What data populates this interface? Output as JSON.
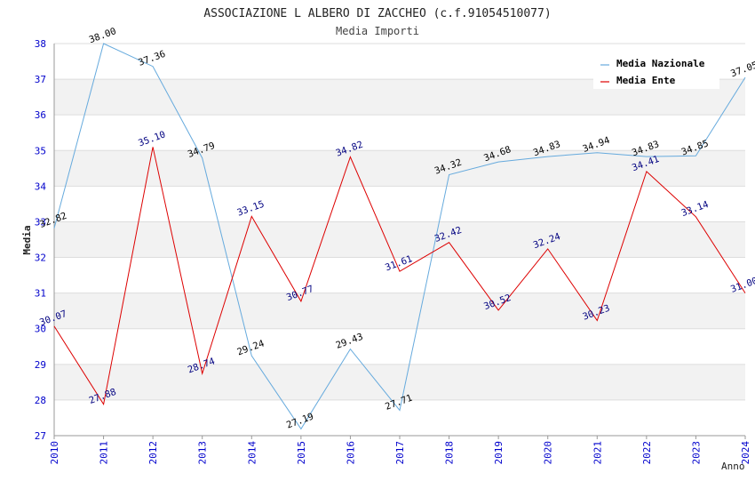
{
  "chart_data": {
    "type": "line",
    "title": "ASSOCIAZIONE L ALBERO DI ZACCHEO (c.f.91054510077)",
    "subtitle": "Media Importi",
    "xlabel": "Anno",
    "ylabel": "Media",
    "ylim": [
      27,
      38
    ],
    "yticks": [
      "27",
      "28",
      "29",
      "30",
      "31",
      "32",
      "33",
      "34",
      "35",
      "36",
      "37",
      "38"
    ],
    "categories": [
      "2010",
      "2011",
      "2012",
      "2013",
      "2014",
      "2015",
      "2016",
      "2017",
      "2018",
      "2019",
      "2020",
      "2021",
      "2022",
      "2023",
      "2024"
    ],
    "legend_position": "top-right",
    "series": [
      {
        "name": "Media Nazionale",
        "color": "#66aadd",
        "label_color": "#000000",
        "values": [
          32.82,
          38.0,
          37.36,
          34.79,
          29.24,
          27.19,
          29.43,
          27.71,
          34.32,
          34.68,
          34.83,
          34.94,
          34.83,
          34.85,
          37.05
        ],
        "labels": [
          "32.82",
          "38.00",
          "37.36",
          "34.79",
          "29.24",
          "27.19",
          "29.43",
          "27.71",
          "34.32",
          "34.68",
          "34.83",
          "34.94",
          "34.83",
          "34.85",
          "37.05"
        ]
      },
      {
        "name": "Media Ente",
        "color": "#dd0000",
        "label_color": "#000080",
        "values": [
          30.07,
          27.88,
          35.1,
          28.74,
          33.15,
          30.77,
          34.82,
          31.61,
          32.42,
          30.52,
          32.24,
          30.23,
          34.41,
          33.14,
          31.0
        ],
        "labels": [
          "30.07",
          "27.88",
          "35.10",
          "28.74",
          "33.15",
          "30.77",
          "34.82",
          "31.61",
          "32.42",
          "30.52",
          "32.24",
          "30.23",
          "34.41",
          "33.14",
          "31.00"
        ]
      }
    ]
  },
  "colors": {
    "band": "#f2f2f2",
    "grid": "#dddddd",
    "axis": "#999999",
    "tick_text": "#0000cc"
  }
}
